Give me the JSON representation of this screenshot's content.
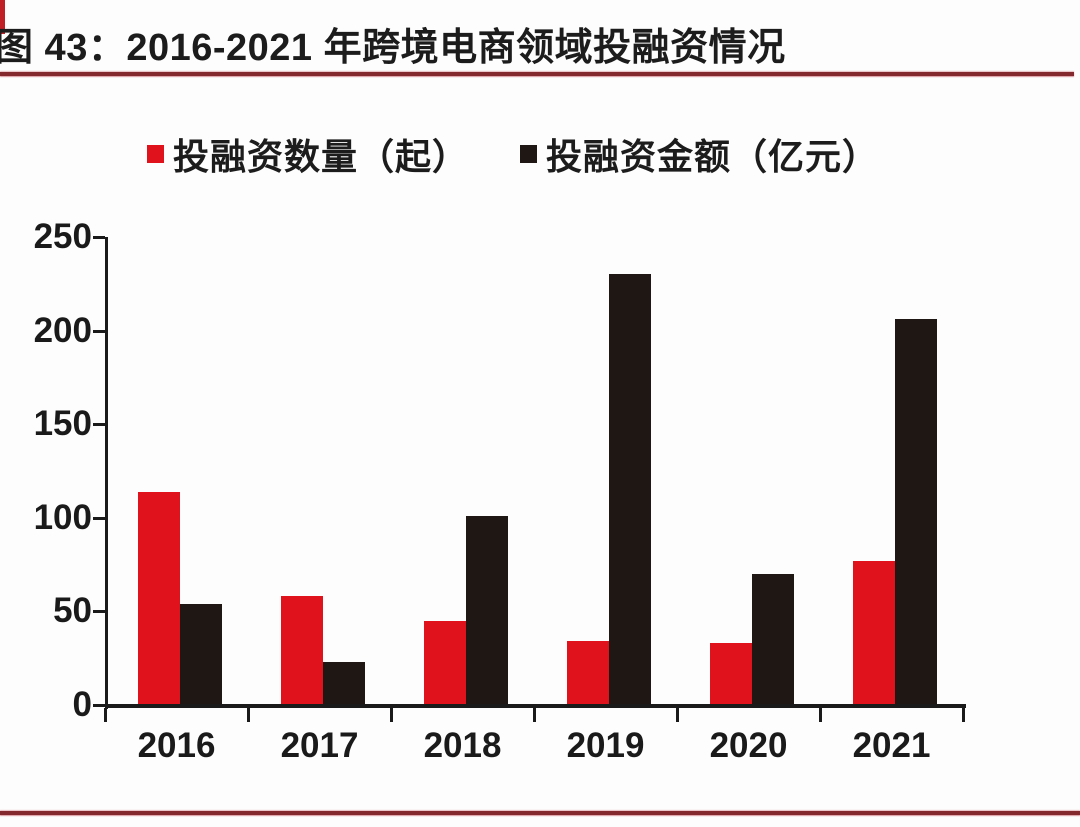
{
  "figure": {
    "caption": "图 43：2016-2021 年跨境电商领域投融资情况"
  },
  "chart_data": {
    "type": "bar",
    "title": "图 43：2016-2021 年跨境电商领域投融资情况",
    "categories": [
      "2016",
      "2017",
      "2018",
      "2019",
      "2020",
      "2021"
    ],
    "series": [
      {
        "name": "投融资数量（起）",
        "color": "#e0121c",
        "values": [
          114,
          58,
          45,
          34,
          33,
          77
        ]
      },
      {
        "name": "投融资金额（亿元）",
        "color": "#1f1713",
        "values": [
          54,
          23,
          101,
          230,
          70,
          206
        ]
      }
    ],
    "xlabel": "",
    "ylabel": "",
    "ylim": [
      0,
      250
    ],
    "yticks": [
      0,
      50,
      100,
      150,
      200,
      250
    ],
    "grid": false,
    "legend_position": "top"
  },
  "colors": {
    "accent_rule": "#84292e",
    "corner_accent": "#c01f25",
    "axis": "#1a1a1a",
    "text": "#1c1c1c",
    "background": "#fdfdfd"
  }
}
